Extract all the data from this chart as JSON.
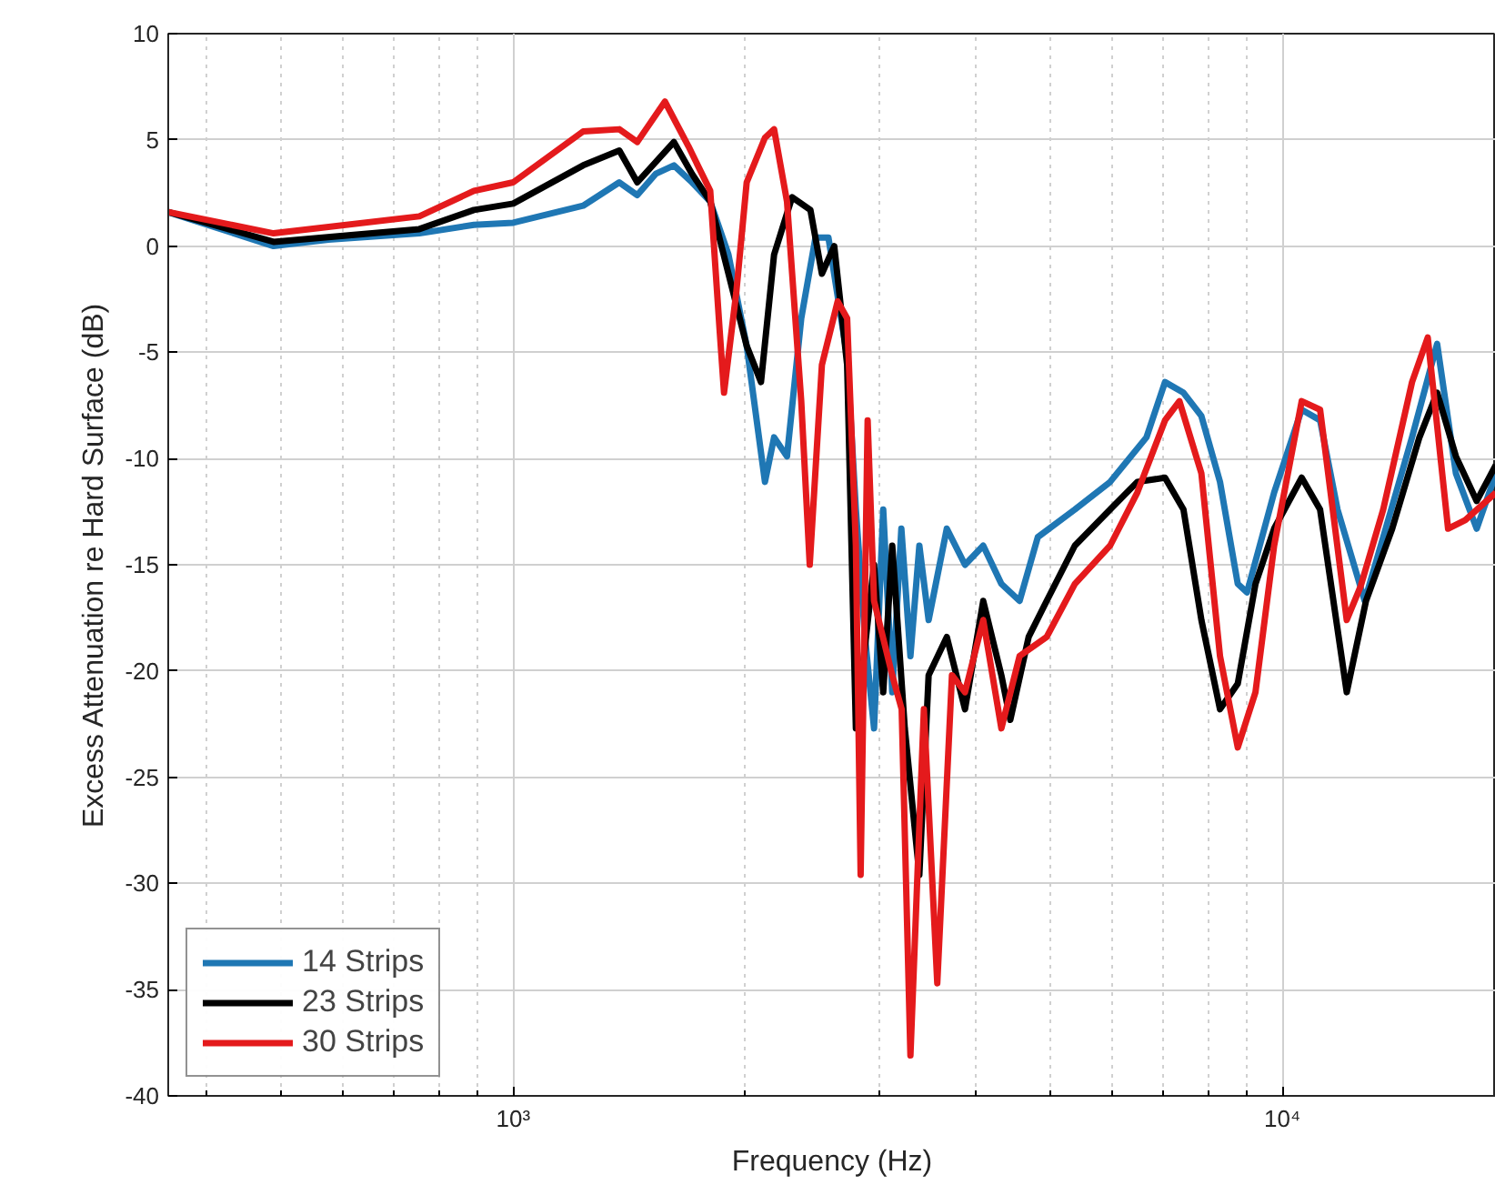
{
  "chart_data": {
    "type": "line",
    "xlabel": "Frequency (Hz)",
    "ylabel": "Excess Attenuation re Hard Surface (dB)",
    "log": "x",
    "xlim": [
      356,
      18960
    ],
    "ylim": [
      -40,
      10
    ],
    "xticks": [
      {
        "value": 1000,
        "label": "10³"
      },
      {
        "value": 10000,
        "label": "10⁴"
      }
    ],
    "yticks": [
      -40,
      -35,
      -30,
      -25,
      -20,
      -15,
      -10,
      -5,
      0,
      5,
      10
    ],
    "grid": true,
    "legend": "bottom left",
    "line_style": "solid",
    "marker": "none",
    "series": [
      {
        "name": "14 Strips",
        "color": "#1f77b4",
        "x": [
          356,
          488,
          575,
          755,
          889,
          1000,
          1233,
          1374,
          1450,
          1532,
          1618,
          1708,
          1804,
          1905,
          2012,
          2125,
          2184,
          2270,
          2369,
          2472,
          2570,
          2718,
          2790,
          2867,
          2946,
          3028,
          3111,
          3197,
          3285,
          3374,
          3469,
          3663,
          3868,
          4085,
          4313,
          4555,
          4810,
          5374,
          5973,
          6660,
          7040,
          7440,
          7850,
          8300,
          8753,
          9000,
          9760,
          10600,
          11200,
          11800,
          12800,
          13530,
          14750,
          15900,
          16820,
          17900,
          18960
        ],
        "values": [
          1.6,
          0.0,
          0.3,
          0.6,
          1.0,
          1.1,
          1.9,
          3.0,
          2.4,
          3.4,
          3.8,
          3.0,
          2.1,
          -0.4,
          -4.7,
          -11.1,
          -9.0,
          -9.9,
          -3.4,
          0.4,
          0.4,
          -5.2,
          -12.4,
          -18.4,
          -22.7,
          -12.4,
          -21.0,
          -13.3,
          -19.3,
          -14.1,
          -17.6,
          -13.3,
          -15.0,
          -14.1,
          -15.9,
          -16.7,
          -13.7,
          -12.4,
          -11.1,
          -9.0,
          -6.4,
          -6.9,
          -8.0,
          -11.1,
          -15.9,
          -16.3,
          -11.6,
          -7.7,
          -8.2,
          -12.4,
          -16.7,
          -13.7,
          -9.0,
          -4.6,
          -10.7,
          -13.3,
          -10.7
        ]
      },
      {
        "name": "23 Strips",
        "color": "#000000",
        "x": [
          356,
          488,
          755,
          889,
          1000,
          1233,
          1374,
          1450,
          1618,
          1708,
          1804,
          1905,
          2012,
          2100,
          2184,
          2305,
          2435,
          2520,
          2615,
          2718,
          2790,
          2946,
          3028,
          3111,
          3230,
          3374,
          3469,
          3663,
          3868,
          4085,
          4313,
          4430,
          4680,
          4940,
          5374,
          5973,
          6480,
          7040,
          7440,
          7850,
          8300,
          8753,
          9230,
          9760,
          10600,
          11200,
          12130,
          12850,
          13900,
          15080,
          15900,
          16820,
          17900,
          18960
        ],
        "values": [
          1.6,
          0.2,
          0.8,
          1.7,
          2.0,
          3.8,
          4.5,
          3.0,
          4.9,
          3.4,
          2.1,
          -1.3,
          -4.7,
          -6.4,
          -0.4,
          2.3,
          1.7,
          -1.3,
          0.0,
          -5.6,
          -22.7,
          -15.0,
          -21.0,
          -14.1,
          -22.7,
          -29.6,
          -20.2,
          -18.4,
          -21.8,
          -16.7,
          -20.2,
          -22.3,
          -18.4,
          -16.7,
          -14.1,
          -12.4,
          -11.1,
          -10.9,
          -12.4,
          -17.6,
          -21.8,
          -20.6,
          -15.9,
          -13.3,
          -10.9,
          -12.4,
          -21.0,
          -16.7,
          -13.3,
          -9.0,
          -6.9,
          -9.9,
          -12.0,
          -10.3
        ]
      },
      {
        "name": "30 Strips",
        "color": "#e41a1c",
        "x": [
          356,
          488,
          755,
          889,
          1000,
          1233,
          1374,
          1450,
          1575,
          1690,
          1804,
          1855,
          1880,
          1950,
          2012,
          2125,
          2184,
          2270,
          2369,
          2430,
          2520,
          2642,
          2718,
          2790,
          2830,
          2890,
          2946,
          3111,
          3200,
          3285,
          3420,
          3560,
          3720,
          3868,
          4085,
          4313,
          4555,
          4940,
          5374,
          5973,
          6480,
          7040,
          7350,
          7850,
          8300,
          8753,
          9230,
          9760,
          10600,
          11200,
          12130,
          12650,
          13530,
          14750,
          15460,
          16430,
          17300,
          18960
        ],
        "values": [
          1.6,
          0.6,
          1.4,
          2.6,
          3.0,
          5.4,
          5.5,
          4.9,
          6.8,
          4.7,
          2.6,
          -3.9,
          -6.9,
          -2.2,
          3.0,
          5.1,
          5.5,
          2.1,
          -7.3,
          -15.0,
          -5.6,
          -2.6,
          -3.4,
          -14.1,
          -29.6,
          -8.2,
          -16.7,
          -20.2,
          -21.8,
          -38.1,
          -21.8,
          -34.7,
          -20.2,
          -21.0,
          -17.6,
          -22.7,
          -19.3,
          -18.4,
          -15.9,
          -14.1,
          -11.6,
          -8.2,
          -7.3,
          -10.7,
          -19.3,
          -23.6,
          -21.0,
          -14.1,
          -7.3,
          -7.7,
          -17.6,
          -16.0,
          -12.4,
          -6.4,
          -4.3,
          -13.3,
          -12.9,
          -11.6
        ]
      }
    ]
  }
}
